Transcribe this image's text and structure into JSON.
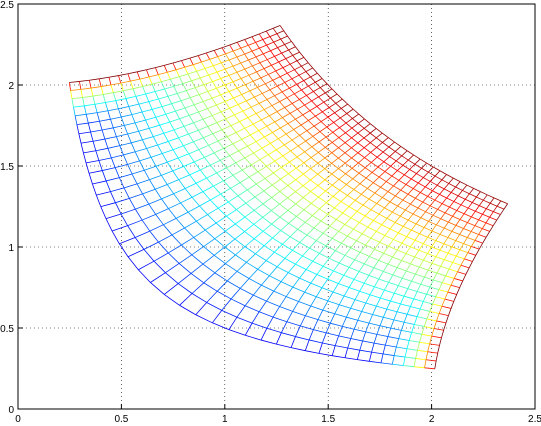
{
  "chart_data": {
    "type": "mesh",
    "xlim": [
      0,
      2.5
    ],
    "ylim": [
      0,
      2.5
    ],
    "xticks": [
      0,
      0.5,
      1,
      1.5,
      2,
      2.5
    ],
    "yticks": [
      0,
      0.5,
      1,
      1.5,
      2,
      2.5
    ],
    "grid": true,
    "colormap": "jet",
    "xy_levels": [
      0.5,
      0.6,
      0.7,
      0.8,
      0.9,
      1.0,
      1.1,
      1.2,
      1.3,
      1.4,
      1.5,
      1.6,
      1.7,
      1.8,
      1.9,
      2.0,
      2.1,
      2.2,
      2.3,
      2.4,
      2.5,
      2.6,
      2.7,
      2.8,
      2.9,
      3.0
    ],
    "x2_minus_y2_levels": [
      -4,
      -3.8,
      -3.6,
      -3.4,
      -3.2,
      -3,
      -2.8,
      -2.6,
      -2.4,
      -2.2,
      -2,
      -1.8,
      -1.6,
      -1.4,
      -1.2,
      -1,
      -0.8,
      -0.6,
      -0.4,
      -0.2,
      0,
      0.2,
      0.4,
      0.6,
      0.8,
      1,
      1.2,
      1.4,
      1.6,
      1.8,
      2,
      2.2,
      2.4,
      2.6,
      2.8,
      3,
      3.2,
      3.4,
      3.6,
      3.8,
      4
    ]
  }
}
